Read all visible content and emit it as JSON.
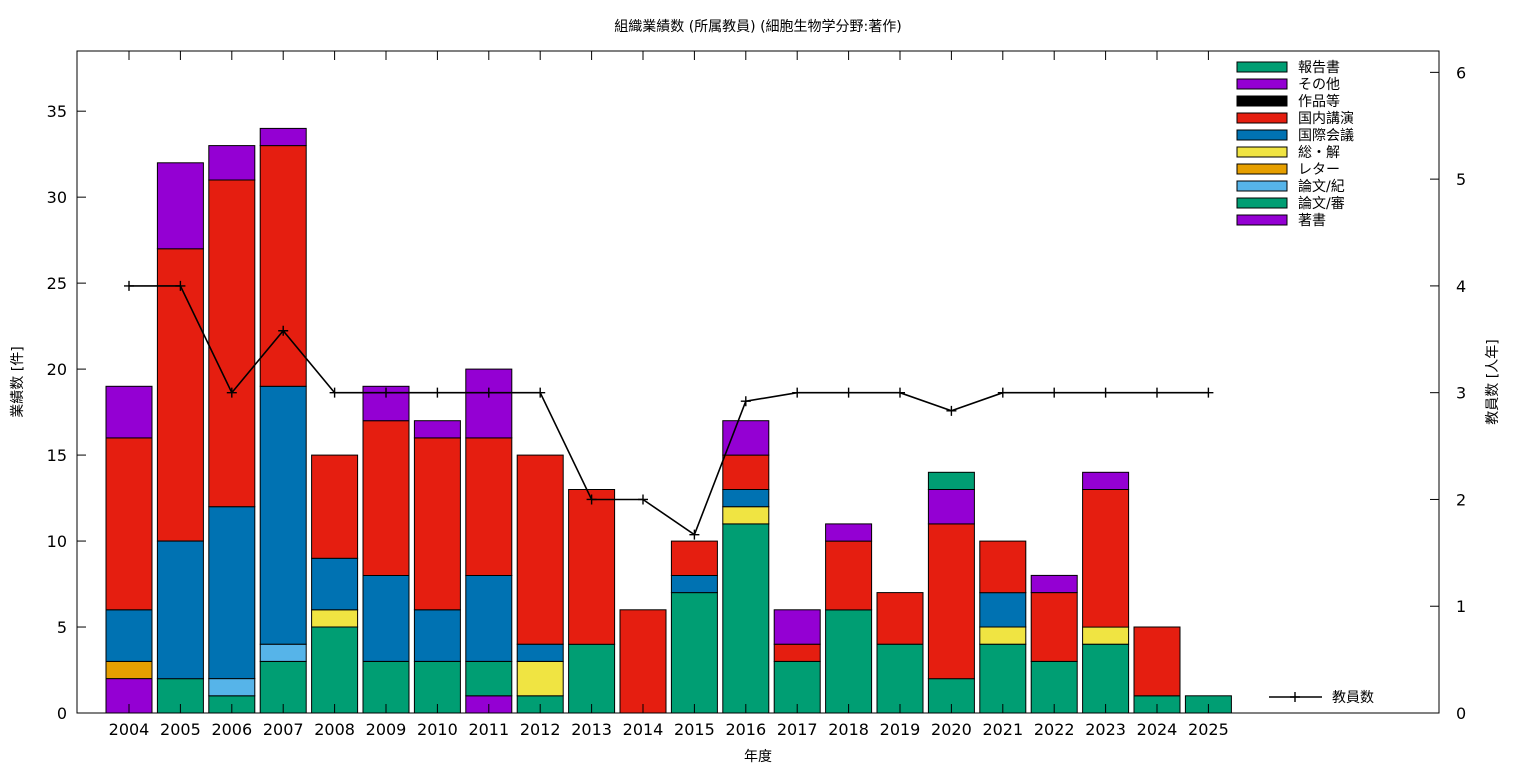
{
  "chart_data": {
    "type": "bar",
    "stacked": true,
    "title": "組織業績数 (所属教員) (細胞生物学分野:著作)",
    "xlabel": "年度",
    "ylabel": "業績数 [件]",
    "y2label": "教員数 [人年]",
    "ylim": [
      0,
      38.5
    ],
    "y2lim": [
      0,
      6.2
    ],
    "yticks": [
      "0",
      "5",
      "10",
      "15",
      "20",
      "25",
      "30",
      "35"
    ],
    "y2ticks": [
      "0",
      "1",
      "2",
      "3",
      "4",
      "5",
      "6"
    ],
    "legend_position": "top-right",
    "categories": [
      "2004",
      "2005",
      "2006",
      "2007",
      "2008",
      "2009",
      "2010",
      "2011",
      "2012",
      "2013",
      "2014",
      "2015",
      "2016",
      "2017",
      "2018",
      "2019",
      "2020",
      "2021",
      "2022",
      "2023",
      "2024",
      "2025"
    ],
    "series": [
      {
        "name": "著書",
        "color": "#9400d3",
        "values": [
          2,
          0,
          0,
          0,
          0,
          0,
          0,
          1,
          0,
          0,
          0,
          0,
          0,
          0,
          0,
          0,
          0,
          0,
          0,
          0,
          0,
          0
        ]
      },
      {
        "name": "論文/審",
        "color": "#009e73",
        "values": [
          0,
          2,
          1,
          3,
          5,
          3,
          3,
          2,
          1,
          4,
          0,
          7,
          11,
          3,
          6,
          4,
          2,
          4,
          3,
          4,
          1,
          1
        ]
      },
      {
        "name": "論文/紀",
        "color": "#56b4e9",
        "values": [
          0,
          0,
          1,
          1,
          0,
          0,
          0,
          0,
          0,
          0,
          0,
          0,
          0,
          0,
          0,
          0,
          0,
          0,
          0,
          0,
          0,
          0
        ]
      },
      {
        "name": "レター",
        "color": "#e69f00",
        "values": [
          1,
          0,
          0,
          0,
          0,
          0,
          0,
          0,
          0,
          0,
          0,
          0,
          0,
          0,
          0,
          0,
          0,
          0,
          0,
          0,
          0,
          0
        ]
      },
      {
        "name": "総・解",
        "color": "#f0e442",
        "values": [
          0,
          0,
          0,
          0,
          1,
          0,
          0,
          0,
          2,
          0,
          0,
          0,
          1,
          0,
          0,
          0,
          0,
          1,
          0,
          1,
          0,
          0
        ]
      },
      {
        "name": "国際会議",
        "color": "#0072b2",
        "values": [
          3,
          8,
          10,
          15,
          3,
          5,
          3,
          5,
          1,
          0,
          0,
          1,
          1,
          0,
          0,
          0,
          0,
          2,
          0,
          0,
          0,
          0
        ]
      },
      {
        "name": "国内講演",
        "color": "#e51e10",
        "values": [
          10,
          17,
          19,
          14,
          6,
          9,
          10,
          8,
          11,
          9,
          6,
          2,
          2,
          1,
          4,
          3,
          9,
          3,
          4,
          8,
          4,
          0
        ]
      },
      {
        "name": "作品等",
        "color": "#000000",
        "values": [
          0,
          0,
          0,
          0,
          0,
          0,
          0,
          0,
          0,
          0,
          0,
          0,
          0,
          0,
          0,
          0,
          0,
          0,
          0,
          0,
          0,
          0
        ]
      },
      {
        "name": "その他",
        "color": "#9400d3",
        "values": [
          3,
          5,
          2,
          1,
          0,
          2,
          1,
          4,
          0,
          0,
          0,
          0,
          2,
          2,
          1,
          0,
          2,
          0,
          1,
          1,
          0,
          0
        ]
      },
      {
        "name": "報告書",
        "color": "#009e73",
        "values": [
          0,
          0,
          0,
          0,
          0,
          0,
          0,
          0,
          0,
          0,
          0,
          0,
          0,
          0,
          0,
          0,
          1,
          0,
          0,
          0,
          0,
          0
        ]
      }
    ],
    "line_series": {
      "name": "教員数",
      "color": "#000000",
      "axis": "y2",
      "x": [
        "2004",
        "2005",
        "2006",
        "2007",
        "2008",
        "2009",
        "2010",
        "2011",
        "2012",
        "2013",
        "2014",
        "2015",
        "2016",
        "2017",
        "2018",
        "2019",
        "2020",
        "2021",
        "2022",
        "2023",
        "2024",
        "2025"
      ],
      "values": [
        4,
        4,
        3,
        3.58,
        3,
        3,
        3,
        3,
        3,
        2,
        2,
        1.67,
        2.92,
        3,
        3,
        3,
        2.83,
        3,
        3,
        3,
        3,
        3
      ]
    }
  }
}
